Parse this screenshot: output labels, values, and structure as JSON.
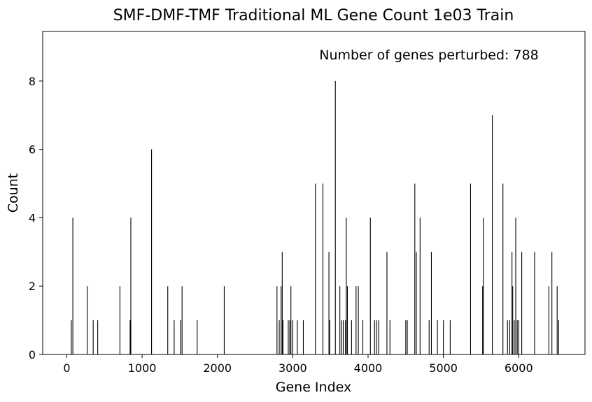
{
  "chart_data": {
    "type": "bar",
    "title": "SMF-DMF-TMF Traditional ML Gene Count 1e03 Train",
    "xlabel": "Gene Index",
    "ylabel": "Count",
    "xlim": [
      -320,
      6880
    ],
    "ylim": [
      0,
      9.45
    ],
    "x_ticks": [
      0,
      1000,
      2000,
      3000,
      4000,
      5000,
      6000
    ],
    "x_tick_labels": [
      "0",
      "1000",
      "2000",
      "3000",
      "4000",
      "5000",
      "6000"
    ],
    "y_ticks": [
      0,
      2,
      4,
      6,
      8
    ],
    "y_tick_labels": [
      "0",
      "2",
      "4",
      "6",
      "8"
    ],
    "grid": false,
    "annotation": "Number of genes perturbed: 788",
    "bar_color": "#000000",
    "x": [
      60,
      80,
      270,
      350,
      410,
      705,
      840,
      850,
      1125,
      1340,
      1425,
      1510,
      1530,
      1730,
      2090,
      2790,
      2820,
      2845,
      2860,
      2870,
      2940,
      2960,
      2975,
      3000,
      3060,
      3140,
      3300,
      3400,
      3480,
      3490,
      3565,
      3625,
      3650,
      3670,
      3700,
      3710,
      3725,
      3780,
      3840,
      3870,
      3930,
      4030,
      4085,
      4110,
      4140,
      4250,
      4290,
      4500,
      4520,
      4620,
      4640,
      4690,
      4810,
      4840,
      4920,
      5000,
      5090,
      5360,
      5520,
      5530,
      5650,
      5790,
      5850,
      5880,
      5910,
      5920,
      5940,
      5960,
      5980,
      6000,
      6040,
      6210,
      6400,
      6440,
      6510,
      6530
    ],
    "values": [
      1,
      4,
      2,
      1,
      1,
      2,
      1,
      4,
      6,
      2,
      1,
      1,
      2,
      1,
      2,
      2,
      1,
      2,
      3,
      1,
      1,
      1,
      2,
      1,
      1,
      1,
      5,
      5,
      3,
      1,
      8,
      2,
      1,
      1,
      1,
      4,
      2,
      1,
      2,
      2,
      1,
      4,
      1,
      1,
      1,
      3,
      1,
      1,
      1,
      5,
      3,
      4,
      1,
      3,
      1,
      1,
      1,
      5,
      2,
      4,
      7,
      5,
      1,
      1,
      3,
      2,
      1,
      4,
      1,
      1,
      3,
      3,
      2,
      3,
      2,
      1
    ]
  }
}
